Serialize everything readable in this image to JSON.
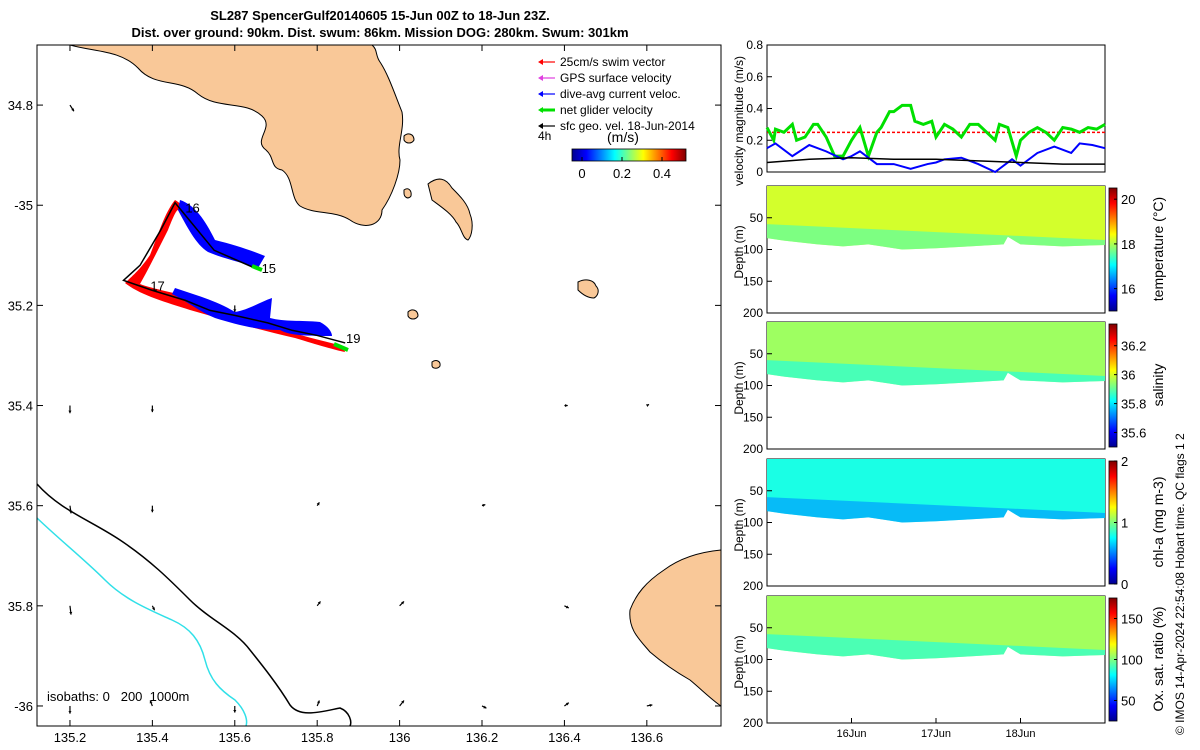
{
  "header": {
    "line1": "SL287 SpencerGulf20140605 15-Jun 00Z to 18-Jun 23Z.",
    "line2": "Dist. over ground: 90km. Dist. swum: 86km. Mission DOG: 280km. Swum: 301km"
  },
  "colors": {
    "land": "#f9c898",
    "swim_vector": "#ff0000",
    "gps_surface": "#e040e0",
    "dive_avg": "#0000ff",
    "net_glider": "#00e000",
    "sfc_geo": "#000000",
    "isobath_200": "#000000",
    "isobath_1000": "#30e0e8"
  },
  "footer": {
    "note": "© IMOS 14-Apr-2024 22:54:08 Hobart time. QC flags 1  2"
  },
  "chart_data": [
    {
      "type": "map",
      "title": "SL287 SpencerGulf20140605 track map",
      "xlim": [
        135.12,
        136.78
      ],
      "ylim": [
        -36.04,
        -34.68
      ],
      "x_ticks": [
        135.2,
        135.4,
        135.6,
        135.8,
        136,
        136.2,
        136.4,
        136.6
      ],
      "x_tick_labels": [
        "135.2",
        "135.4",
        "135.6",
        "135.8",
        "136",
        "136.2",
        "136.4",
        "136.6"
      ],
      "y_ticks": [
        -34.8,
        -35,
        -35.2,
        -35.4,
        -35.6,
        -35.8,
        -36
      ],
      "y_tick_labels": [
        "34.8",
        "-35",
        "35.2",
        "35.4",
        "35.6",
        "35.8",
        "-36"
      ],
      "legend": {
        "position": "top-right",
        "entries": [
          {
            "label": "25cm/s swim vector",
            "color_key": "swim_vector"
          },
          {
            "label": "GPS surface velocity",
            "color_key": "gps_surface"
          },
          {
            "label": "dive-avg current veloc.",
            "color_key": "dive_avg"
          },
          {
            "label": "net glider velocity",
            "color_key": "net_glider"
          },
          {
            "label": "sfc geo. vel. 18-Jun-2014",
            "color_key": "sfc_geo"
          }
        ],
        "interval_label": "4h"
      },
      "colorbar": {
        "label": "(m/s)",
        "range": [
          -0.05,
          0.52
        ],
        "ticks": [
          0,
          0.2,
          0.4
        ],
        "tick_labels": [
          "0",
          "0.2",
          "0.4"
        ]
      },
      "track": [
        [
          135.653,
          -35.127
        ],
        [
          135.55,
          -35.09
        ],
        [
          135.49,
          -35.03
        ],
        [
          135.455,
          -34.995
        ],
        [
          135.42,
          -35.05
        ],
        [
          135.37,
          -35.12
        ],
        [
          135.33,
          -35.15
        ],
        [
          135.4,
          -35.17
        ],
        [
          135.48,
          -35.19
        ],
        [
          135.54,
          -35.21
        ],
        [
          135.6,
          -35.22
        ],
        [
          135.68,
          -35.235
        ],
        [
          135.74,
          -35.25
        ],
        [
          135.8,
          -35.26
        ],
        [
          135.868,
          -35.275
        ]
      ],
      "track_labels": [
        {
          "lon": 135.48,
          "lat": -35.005,
          "text": "16"
        },
        {
          "lon": 135.665,
          "lat": -35.125,
          "text": "15"
        },
        {
          "lon": 135.395,
          "lat": -35.16,
          "text": "17"
        },
        {
          "lon": 135.87,
          "lat": -35.265,
          "text": "19"
        }
      ],
      "surface_vectors": [
        {
          "lon": 135.2,
          "lat": -34.8,
          "u": 0.18,
          "v": -0.28
        },
        {
          "lon": 135.6,
          "lat": -35.2,
          "u": 0.0,
          "v": -0.3
        },
        {
          "lon": 135.2,
          "lat": -35.4,
          "u": 0.0,
          "v": -0.35
        },
        {
          "lon": 135.4,
          "lat": -35.4,
          "u": 0.0,
          "v": -0.3
        },
        {
          "lon": 136.4,
          "lat": -35.4,
          "u": 0.15,
          "v": 0.0
        },
        {
          "lon": 136.6,
          "lat": -35.4,
          "u": 0.1,
          "v": 0.05
        },
        {
          "lon": 135.2,
          "lat": -35.6,
          "u": 0.05,
          "v": -0.35
        },
        {
          "lon": 135.4,
          "lat": -35.6,
          "u": 0.0,
          "v": -0.3
        },
        {
          "lon": 135.8,
          "lat": -35.6,
          "u": 0.1,
          "v": 0.15
        },
        {
          "lon": 136.2,
          "lat": -35.6,
          "u": 0.15,
          "v": 0.05
        },
        {
          "lon": 135.2,
          "lat": -35.8,
          "u": 0.05,
          "v": -0.4
        },
        {
          "lon": 135.4,
          "lat": -35.8,
          "u": 0.1,
          "v": -0.2
        },
        {
          "lon": 135.8,
          "lat": -35.8,
          "u": 0.15,
          "v": 0.2
        },
        {
          "lon": 136.0,
          "lat": -35.8,
          "u": 0.2,
          "v": 0.2
        },
        {
          "lon": 136.4,
          "lat": -35.8,
          "u": 0.2,
          "v": -0.1
        },
        {
          "lon": 135.2,
          "lat": -36.0,
          "u": 0.0,
          "v": -0.35
        },
        {
          "lon": 135.4,
          "lat": -36.0,
          "u": -0.1,
          "v": 0.25
        },
        {
          "lon": 135.6,
          "lat": -36.0,
          "u": 0.0,
          "v": -0.3
        },
        {
          "lon": 135.8,
          "lat": -36.0,
          "u": 0.1,
          "v": 0.25
        },
        {
          "lon": 136.0,
          "lat": -36.0,
          "u": 0.2,
          "v": 0.25
        },
        {
          "lon": 136.2,
          "lat": -36.0,
          "u": 0.2,
          "v": -0.1
        },
        {
          "lon": 136.4,
          "lat": -36.0,
          "u": 0.2,
          "v": 0.15
        },
        {
          "lon": 136.6,
          "lat": -36.0,
          "u": 0.25,
          "v": 0.05
        }
      ],
      "isobath_legend": "isobaths: 0   200  1000m"
    },
    {
      "type": "line",
      "title": "velocity magnitude",
      "ylabel": "velocity magnitude (m/s)",
      "ylim": [
        0,
        0.8
      ],
      "y_ticks": [
        0,
        0.2,
        0.4,
        0.6,
        0.8
      ],
      "y_tick_labels": [
        "0",
        "0.2",
        "0.4",
        "0.6",
        "0.8"
      ],
      "xlim": [
        15,
        19
      ],
      "series": [
        {
          "name": "swim vector",
          "color_key": "swim_vector",
          "style": "dashed",
          "x": [
            15.0,
            15.5,
            16.0,
            16.5,
            17.0,
            17.5,
            18.0,
            18.5,
            19.0
          ],
          "values": [
            0.25,
            0.25,
            0.25,
            0.25,
            0.25,
            0.25,
            0.25,
            0.25,
            0.25
          ]
        },
        {
          "name": "net glider velocity",
          "color_key": "net_glider",
          "style": "solid",
          "x": [
            15.0,
            15.08,
            15.1,
            15.2,
            15.3,
            15.35,
            15.45,
            15.55,
            15.6,
            15.7,
            15.8,
            15.9,
            16.0,
            16.1,
            16.2,
            16.3,
            16.35,
            16.45,
            16.5,
            16.6,
            16.7,
            16.75,
            16.85,
            16.95,
            17.0,
            17.1,
            17.2,
            17.3,
            17.4,
            17.5,
            17.6,
            17.7,
            17.75,
            17.85,
            17.95,
            18.0,
            18.1,
            18.2,
            18.3,
            18.4,
            18.5,
            18.6,
            18.7,
            18.8,
            18.9,
            19.0
          ],
          "values": [
            0.28,
            0.2,
            0.27,
            0.25,
            0.3,
            0.2,
            0.22,
            0.3,
            0.3,
            0.22,
            0.1,
            0.1,
            0.2,
            0.28,
            0.1,
            0.25,
            0.28,
            0.38,
            0.38,
            0.42,
            0.42,
            0.32,
            0.3,
            0.32,
            0.22,
            0.3,
            0.27,
            0.22,
            0.3,
            0.3,
            0.25,
            0.2,
            0.3,
            0.28,
            0.1,
            0.2,
            0.25,
            0.28,
            0.25,
            0.2,
            0.28,
            0.27,
            0.25,
            0.28,
            0.27,
            0.3
          ]
        },
        {
          "name": "dive-avg current veloc.",
          "color_key": "dive_avg",
          "style": "solid",
          "x": [
            15.0,
            15.1,
            15.3,
            15.5,
            15.7,
            15.9,
            16.0,
            16.1,
            16.3,
            16.5,
            16.7,
            16.9,
            17.0,
            17.1,
            17.3,
            17.5,
            17.7,
            17.9,
            18.0,
            18.2,
            18.4,
            18.6,
            18.7,
            18.85,
            19.0
          ],
          "values": [
            0.15,
            0.18,
            0.1,
            0.17,
            0.13,
            0.08,
            0.1,
            0.13,
            0.05,
            0.05,
            0.02,
            0.05,
            0.06,
            0.08,
            0.09,
            0.05,
            0.0,
            0.08,
            0.04,
            0.12,
            0.16,
            0.12,
            0.18,
            0.17,
            0.15
          ]
        },
        {
          "name": "sfc geo. vel.",
          "color_key": "sfc_geo",
          "style": "solid",
          "x": [
            15.0,
            15.5,
            16.0,
            16.5,
            17.0,
            17.5,
            18.0,
            18.5,
            19.0
          ],
          "values": [
            0.06,
            0.08,
            0.09,
            0.08,
            0.08,
            0.07,
            0.06,
            0.05,
            0.05
          ]
        }
      ]
    },
    {
      "type": "heatmap",
      "title": "temperature section",
      "ylabel": "Depth (m)",
      "colorbar_label": "temperature (°C)",
      "ylim": [
        200,
        0
      ],
      "y_ticks": [
        50,
        100,
        150,
        200
      ],
      "y_tick_labels": [
        "50",
        "100",
        "150",
        "200"
      ],
      "clim": [
        15,
        20.5
      ],
      "colorbar_ticks": [
        16,
        18,
        20
      ],
      "colorbar_tick_labels": [
        "16",
        "18",
        "20"
      ],
      "typical_value": 18.2
    },
    {
      "type": "heatmap",
      "title": "salinity section",
      "ylabel": "Depth (m)",
      "colorbar_label": "salinity",
      "ylim": [
        200,
        0
      ],
      "y_ticks": [
        50,
        100,
        150,
        200
      ],
      "y_tick_labels": [
        "50",
        "100",
        "150",
        "200"
      ],
      "clim": [
        35.5,
        36.35
      ],
      "colorbar_ticks": [
        35.6,
        35.8,
        36,
        36.2
      ],
      "colorbar_tick_labels": [
        "35.6",
        "35.8",
        "36",
        "36.2"
      ],
      "typical_value": 35.95
    },
    {
      "type": "heatmap",
      "title": "chlorophyll-a section",
      "ylabel": "Depth (m)",
      "colorbar_label": "chl-a (mg m-3)",
      "ylim": [
        200,
        0
      ],
      "y_ticks": [
        50,
        100,
        150,
        200
      ],
      "y_tick_labels": [
        "50",
        "100",
        "150",
        "200"
      ],
      "clim": [
        0,
        2
      ],
      "colorbar_ticks": [
        0,
        1,
        2
      ],
      "colorbar_tick_labels": [
        "0",
        "1",
        "2"
      ],
      "typical_value": 0.8
    },
    {
      "type": "heatmap",
      "title": "oxygen saturation section",
      "ylabel": "Depth (m)",
      "colorbar_label": "Ox. sat. ratio (%)",
      "ylim": [
        200,
        0
      ],
      "y_ticks": [
        50,
        100,
        150,
        200
      ],
      "y_tick_labels": [
        "50",
        "100",
        "150",
        "200"
      ],
      "clim": [
        25,
        175
      ],
      "colorbar_ticks": [
        50,
        100,
        150
      ],
      "colorbar_tick_labels": [
        "50",
        "100",
        "150"
      ],
      "typical_value": 105,
      "x_ticks": [
        16,
        17,
        18
      ],
      "x_tick_labels": [
        "16Jun",
        "17Jun",
        "18Jun"
      ],
      "xlim": [
        15,
        19
      ]
    }
  ]
}
